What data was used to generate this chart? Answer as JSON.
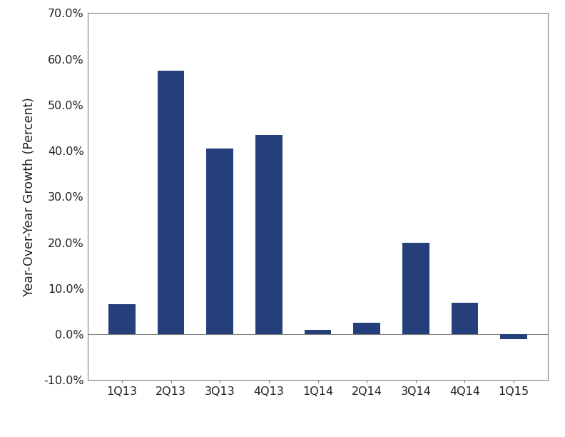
{
  "categories": [
    "1Q13",
    "2Q13",
    "3Q13",
    "4Q13",
    "1Q14",
    "2Q14",
    "3Q14",
    "4Q14",
    "1Q15"
  ],
  "values": [
    0.065,
    0.575,
    0.405,
    0.435,
    0.01,
    0.025,
    0.2,
    0.068,
    -0.01
  ],
  "bar_color": "#243F7A",
  "ylabel": "Year-Over-Year Growth (Percent)",
  "ylim": [
    -0.1,
    0.7
  ],
  "yticks": [
    -0.1,
    0.0,
    0.1,
    0.2,
    0.3,
    0.4,
    0.5,
    0.6,
    0.7
  ],
  "background_color": "#ffffff",
  "bar_width": 0.55,
  "tick_label_fontsize": 11.5,
  "ylabel_fontsize": 12.5,
  "spine_color": "#808080"
}
